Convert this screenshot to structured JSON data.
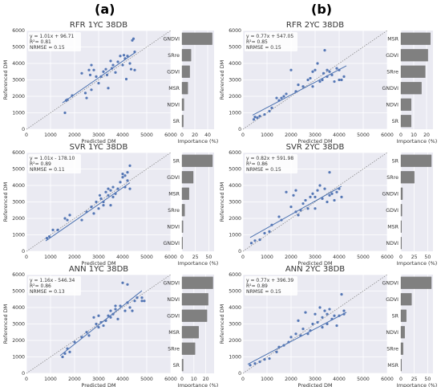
{
  "column_labels": [
    "(a)",
    "(b)"
  ],
  "colors": {
    "background": "#eaeaf2",
    "grid": "#ffffff",
    "point": "#5577b5",
    "fit_line": "#4c72b0",
    "identity": "#7f7f7f",
    "importance_bar": "#808080",
    "annotation_bg": "#ffffff",
    "text": "#333333"
  },
  "chart_data": [
    {
      "type": "scatter",
      "title": "RFR 1YC 38DB",
      "xlabel": "Predicted DM",
      "ylabel": "Referenced DM",
      "xlim": [
        0,
        6000
      ],
      "ylim": [
        0,
        6000
      ],
      "x_ticks": [
        0,
        1000,
        2000,
        3000,
        4000,
        5000,
        6000
      ],
      "y_ticks": [
        0,
        1000,
        2000,
        3000,
        4000,
        5000,
        6000
      ],
      "identity_line": true,
      "annotation": [
        "y = 1.01x + 96.71",
        "R²= 0.81",
        "NRMSE = 0.15"
      ],
      "fit": {
        "slope": 1.01,
        "intercept": 96.71,
        "x_range": [
          1500,
          4500
        ]
      },
      "points": [
        [
          1600,
          1000
        ],
        [
          1650,
          1750
        ],
        [
          1700,
          1800
        ],
        [
          1900,
          2050
        ],
        [
          2300,
          3400
        ],
        [
          2450,
          2200
        ],
        [
          2500,
          1900
        ],
        [
          2600,
          3600
        ],
        [
          2650,
          3300
        ],
        [
          2700,
          2400
        ],
        [
          2700,
          3900
        ],
        [
          2800,
          3600
        ],
        [
          2900,
          3200
        ],
        [
          3000,
          2800
        ],
        [
          3100,
          3200
        ],
        [
          3200,
          3500
        ],
        [
          3300,
          3650
        ],
        [
          3350,
          3300
        ],
        [
          3400,
          2500
        ],
        [
          3500,
          4150
        ],
        [
          3550,
          3700
        ],
        [
          3600,
          3900
        ],
        [
          3700,
          3450
        ],
        [
          3800,
          4100
        ],
        [
          3900,
          4450
        ],
        [
          4000,
          3900
        ],
        [
          4050,
          4500
        ],
        [
          4100,
          4300
        ],
        [
          4150,
          3050
        ],
        [
          4200,
          4450
        ],
        [
          4300,
          4000
        ],
        [
          4350,
          3650
        ],
        [
          4400,
          5400
        ],
        [
          4450,
          5500
        ],
        [
          4500,
          3600
        ],
        [
          4500,
          4700
        ]
      ]
    },
    {
      "type": "bar",
      "orientation": "horizontal",
      "xlabel": "Importance (%)",
      "xlim": [
        0,
        50
      ],
      "x_ticks": [
        0,
        20,
        40
      ],
      "categories": [
        "GNDVI",
        "SRre",
        "GDVI",
        "MSR",
        "NDVI",
        "SR"
      ],
      "values": [
        47,
        14,
        12,
        9,
        3,
        2
      ]
    },
    {
      "type": "scatter",
      "title": "RFR 2YC 38DB",
      "xlabel": "Predicted DM",
      "ylabel": "Referenced DM",
      "xlim": [
        0,
        6000
      ],
      "ylim": [
        0,
        6000
      ],
      "x_ticks": [
        0,
        1000,
        2000,
        3000,
        4000,
        5000,
        6000
      ],
      "y_ticks": [
        0,
        1000,
        2000,
        3000,
        4000,
        5000,
        6000
      ],
      "identity_line": true,
      "annotation": [
        "y = 0.77x + 547.05",
        "R²= 0.85",
        "NRMSE = 0.15"
      ],
      "fit": {
        "slope": 0.77,
        "intercept": 547.05,
        "x_range": [
          400,
          4300
        ]
      },
      "points": [
        [
          450,
          600
        ],
        [
          500,
          750
        ],
        [
          600,
          700
        ],
        [
          700,
          800
        ],
        [
          900,
          900
        ],
        [
          1100,
          1100
        ],
        [
          1200,
          1300
        ],
        [
          1400,
          1900
        ],
        [
          1500,
          1750
        ],
        [
          1600,
          1900
        ],
        [
          1700,
          2000
        ],
        [
          1800,
          2150
        ],
        [
          2000,
          3600
        ],
        [
          2200,
          2300
        ],
        [
          2300,
          2700
        ],
        [
          2500,
          2600
        ],
        [
          2700,
          3000
        ],
        [
          2800,
          3100
        ],
        [
          2900,
          3500
        ],
        [
          2900,
          2600
        ],
        [
          3000,
          3600
        ],
        [
          3100,
          4000
        ],
        [
          3200,
          2900
        ],
        [
          3300,
          3000
        ],
        [
          3350,
          3400
        ],
        [
          3400,
          4800
        ],
        [
          3500,
          3200
        ],
        [
          3500,
          3600
        ],
        [
          3600,
          3500
        ],
        [
          3700,
          3300
        ],
        [
          3800,
          2900
        ],
        [
          3900,
          3700
        ],
        [
          4000,
          3000
        ],
        [
          4100,
          3000
        ],
        [
          4200,
          3200
        ],
        [
          4000,
          3600
        ]
      ]
    },
    {
      "type": "bar",
      "orientation": "horizontal",
      "xlabel": "Importance (%)",
      "xlim": [
        0,
        25
      ],
      "x_ticks": [
        0,
        10,
        20
      ],
      "categories": [
        "MSR",
        "GDVI",
        "SRre",
        "GNDVI",
        "NDVI",
        "SR"
      ],
      "values": [
        23,
        21,
        19,
        16,
        8,
        8
      ]
    },
    {
      "type": "scatter",
      "title": "SVR 1YC 38DB",
      "xlabel": "Predicted DM",
      "ylabel": "Referenced DM",
      "xlim": [
        0,
        6000
      ],
      "ylim": [
        0,
        6000
      ],
      "x_ticks": [
        0,
        1000,
        2000,
        3000,
        4000,
        5000,
        6000
      ],
      "y_ticks": [
        0,
        1000,
        2000,
        3000,
        4000,
        5000,
        6000
      ],
      "identity_line": true,
      "annotation": [
        "y = 1.01x - 178.10",
        "R²= 0.89",
        "NRMSE = 0.11"
      ],
      "fit": {
        "slope": 1.01,
        "intercept": -178.1,
        "x_range": [
          800,
          4300
        ]
      },
      "points": [
        [
          850,
          800
        ],
        [
          950,
          900
        ],
        [
          1100,
          1300
        ],
        [
          1300,
          1300
        ],
        [
          1600,
          2000
        ],
        [
          1700,
          1900
        ],
        [
          1800,
          2200
        ],
        [
          2300,
          1900
        ],
        [
          2500,
          2400
        ],
        [
          2700,
          2700
        ],
        [
          2800,
          2300
        ],
        [
          2900,
          3000
        ],
        [
          3000,
          2600
        ],
        [
          3050,
          3400
        ],
        [
          3100,
          3200
        ],
        [
          3200,
          2800
        ],
        [
          3200,
          3000
        ],
        [
          3300,
          3600
        ],
        [
          3400,
          3400
        ],
        [
          3500,
          3700
        ],
        [
          3500,
          2800
        ],
        [
          3600,
          3300
        ],
        [
          3600,
          3900
        ],
        [
          3700,
          3500
        ],
        [
          3800,
          3800
        ],
        [
          3900,
          4200
        ],
        [
          4000,
          4500
        ],
        [
          4000,
          4700
        ],
        [
          4100,
          3900
        ],
        [
          4200,
          4800
        ],
        [
          4200,
          4300
        ],
        [
          4300,
          5200
        ],
        [
          4300,
          3800
        ],
        [
          4100,
          4600
        ],
        [
          3400,
          3800
        ]
      ]
    },
    {
      "type": "bar",
      "orientation": "horizontal",
      "xlabel": "Importance (%)",
      "xlim": [
        0,
        60
      ],
      "x_ticks": [
        0,
        25,
        50
      ],
      "categories": [
        "SR",
        "GDVI",
        "MSR",
        "SRre",
        "NDVI",
        "GNDVI"
      ],
      "values": [
        57,
        21,
        13,
        5,
        2,
        1
      ]
    },
    {
      "type": "scatter",
      "title": "SVR 2YC 38DB",
      "xlabel": "Predicted DM",
      "ylabel": "Referenced DM",
      "xlim": [
        0,
        6000
      ],
      "ylim": [
        0,
        6000
      ],
      "x_ticks": [
        0,
        1000,
        2000,
        3000,
        4000,
        5000,
        6000
      ],
      "y_ticks": [
        0,
        1000,
        2000,
        3000,
        4000,
        5000,
        6000
      ],
      "identity_line": true,
      "annotation": [
        "y = 0.82x + 591.98",
        "R²= 0.86",
        "NRMSE = 0.15"
      ],
      "fit": {
        "slope": 0.82,
        "intercept": 591.98,
        "x_range": [
          300,
          4100
        ]
      },
      "points": [
        [
          350,
          500
        ],
        [
          500,
          650
        ],
        [
          700,
          700
        ],
        [
          900,
          1100
        ],
        [
          1100,
          1200
        ],
        [
          1200,
          1600
        ],
        [
          1500,
          2100
        ],
        [
          1600,
          1900
        ],
        [
          1800,
          3600
        ],
        [
          2000,
          2700
        ],
        [
          2100,
          3400
        ],
        [
          2200,
          2400
        ],
        [
          2300,
          2200
        ],
        [
          2400,
          2500
        ],
        [
          2500,
          2900
        ],
        [
          2600,
          3100
        ],
        [
          2700,
          2600
        ],
        [
          2800,
          3300
        ],
        [
          2900,
          3500
        ],
        [
          3000,
          2600
        ],
        [
          3000,
          3300
        ],
        [
          3100,
          3700
        ],
        [
          3200,
          4000
        ],
        [
          3300,
          3200
        ],
        [
          3400,
          3800
        ],
        [
          3500,
          3000
        ],
        [
          3600,
          4800
        ],
        [
          3600,
          3400
        ],
        [
          3700,
          3500
        ],
        [
          3800,
          3100
        ],
        [
          3900,
          3600
        ],
        [
          4000,
          3800
        ],
        [
          4100,
          3300
        ],
        [
          2200,
          3700
        ]
      ]
    },
    {
      "type": "bar",
      "orientation": "horizontal",
      "xlabel": "Importance (%)",
      "xlim": [
        0,
        60
      ],
      "x_ticks": [
        0,
        25,
        50
      ],
      "categories": [
        "SR",
        "SRre",
        "GNDVI",
        "GDVI",
        "MSR",
        "NDVI"
      ],
      "values": [
        57,
        25,
        3,
        2,
        1,
        1
      ]
    },
    {
      "type": "scatter",
      "title": "ANN 1YC 38DB",
      "xlabel": "Predicted DM",
      "ylabel": "Referenced DM",
      "xlim": [
        0,
        6000
      ],
      "ylim": [
        0,
        6000
      ],
      "x_ticks": [
        0,
        1000,
        2000,
        3000,
        4000,
        5000,
        6000
      ],
      "y_ticks": [
        0,
        1000,
        2000,
        3000,
        4000,
        5000,
        6000
      ],
      "identity_line": true,
      "annotation": [
        "y = 1.16x - 546.34",
        "R²= 0.86",
        "NRMSE = 0.13"
      ],
      "fit": {
        "slope": 1.16,
        "intercept": -546.34,
        "x_range": [
          1400,
          4800
        ]
      },
      "points": [
        [
          1500,
          1000
        ],
        [
          1600,
          1200
        ],
        [
          1700,
          1500
        ],
        [
          1800,
          1300
        ],
        [
          2000,
          1900
        ],
        [
          2300,
          2200
        ],
        [
          2500,
          2500
        ],
        [
          2600,
          2300
        ],
        [
          2800,
          3400
        ],
        [
          2900,
          3000
        ],
        [
          3000,
          2800
        ],
        [
          3100,
          3100
        ],
        [
          3200,
          2900
        ],
        [
          3300,
          3200
        ],
        [
          3400,
          3500
        ],
        [
          3500,
          3800
        ],
        [
          3600,
          3600
        ],
        [
          3700,
          3900
        ],
        [
          3700,
          4100
        ],
        [
          3800,
          3300
        ],
        [
          3900,
          4100
        ],
        [
          4000,
          5500
        ],
        [
          4100,
          3800
        ],
        [
          4200,
          5400
        ],
        [
          4200,
          4300
        ],
        [
          4300,
          4000
        ],
        [
          4400,
          3800
        ],
        [
          4500,
          4400
        ],
        [
          4600,
          4600
        ],
        [
          4800,
          4400
        ],
        [
          4800,
          4600
        ],
        [
          4900,
          4400
        ],
        [
          3000,
          3500
        ],
        [
          3500,
          3400
        ]
      ]
    },
    {
      "type": "bar",
      "orientation": "horizontal",
      "xlabel": "Importance (%)",
      "xlim": [
        0,
        27
      ],
      "x_ticks": [
        0,
        10,
        20
      ],
      "categories": [
        "GNDVI",
        "NDVI",
        "GDVI",
        "MSR",
        "SRre",
        "SR"
      ],
      "values": [
        26,
        22,
        21,
        14,
        11,
        1
      ]
    },
    {
      "type": "scatter",
      "title": "ANN 2YC 38DB",
      "xlabel": "Predicted DM",
      "ylabel": "Referenced DM",
      "xlim": [
        0,
        6000
      ],
      "ylim": [
        0,
        6000
      ],
      "x_ticks": [
        0,
        1000,
        2000,
        3000,
        4000,
        5000,
        6000
      ],
      "y_ticks": [
        0,
        1000,
        2000,
        3000,
        4000,
        5000,
        6000
      ],
      "identity_line": true,
      "annotation": [
        "y = 0.77x + 396.39",
        "R²= 0.89",
        "NRMSE = 0.15"
      ],
      "fit": {
        "slope": 0.77,
        "intercept": 396.39,
        "x_range": [
          200,
          4300
        ]
      },
      "points": [
        [
          300,
          500
        ],
        [
          500,
          600
        ],
        [
          700,
          700
        ],
        [
          900,
          850
        ],
        [
          1100,
          900
        ],
        [
          1400,
          1300
        ],
        [
          1500,
          1600
        ],
        [
          1700,
          1700
        ],
        [
          1900,
          1900
        ],
        [
          2000,
          2200
        ],
        [
          2200,
          2400
        ],
        [
          2300,
          3200
        ],
        [
          2400,
          2300
        ],
        [
          2500,
          2700
        ],
        [
          2600,
          3700
        ],
        [
          2700,
          2400
        ],
        [
          2800,
          2600
        ],
        [
          2900,
          3000
        ],
        [
          3000,
          3600
        ],
        [
          3100,
          3100
        ],
        [
          3200,
          4000
        ],
        [
          3300,
          3400
        ],
        [
          3400,
          3800
        ],
        [
          3500,
          3000
        ],
        [
          3500,
          3600
        ],
        [
          3600,
          3900
        ],
        [
          3700,
          3300
        ],
        [
          3800,
          3500
        ],
        [
          3900,
          2900
        ],
        [
          4000,
          3500
        ],
        [
          4100,
          4800
        ],
        [
          4200,
          3800
        ],
        [
          4200,
          3600
        ],
        [
          3300,
          2800
        ]
      ]
    },
    {
      "type": "bar",
      "orientation": "horizontal",
      "xlabel": "Importance (%)",
      "xlim": [
        0,
        60
      ],
      "x_ticks": [
        0,
        25,
        50
      ],
      "categories": [
        "GNDVI",
        "GDVI",
        "SR",
        "NDVI",
        "SRre",
        "MSR"
      ],
      "values": [
        57,
        20,
        10,
        7,
        4,
        1
      ]
    }
  ]
}
